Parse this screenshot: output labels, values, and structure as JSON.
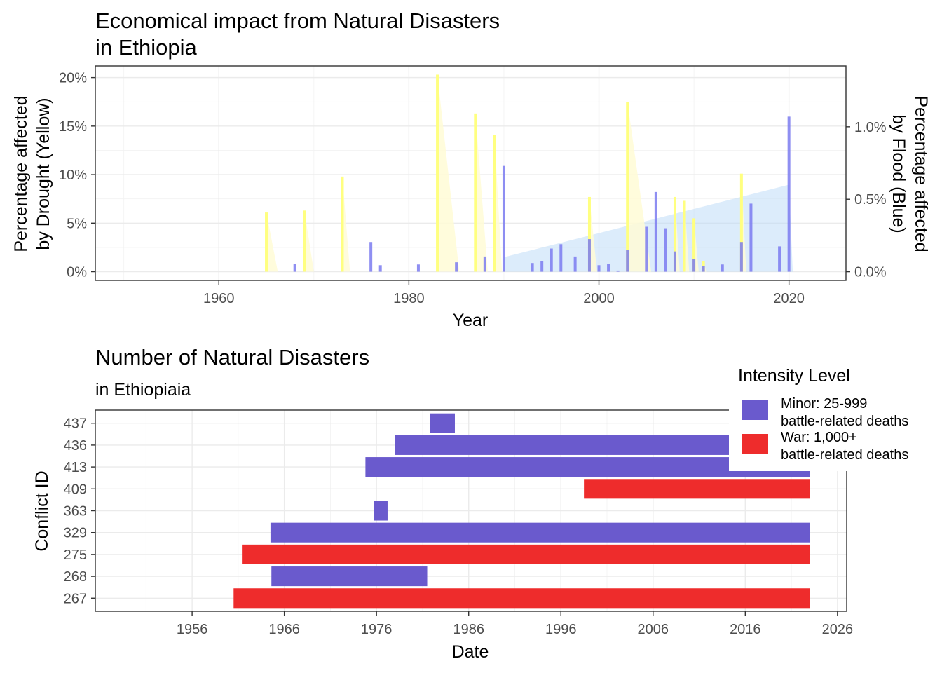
{
  "chart_data": [
    {
      "type": "bar",
      "title_line1": "Economical impact from Natural Disasters",
      "title_line2": "in Ethiopia",
      "xlabel": "Year",
      "ylabel_line1": "Percentage affected",
      "ylabel_line2": "by Drought (Yellow)",
      "y2label_line1": "Percentage affected",
      "y2label_line2": "by Flood (Blue)",
      "xlim": [
        1947,
        2026
      ],
      "ylim": [
        -0.9,
        21.2
      ],
      "y2lim": [
        -0.06,
        1.42
      ],
      "x_ticks": [
        1960,
        1980,
        2000,
        2020
      ],
      "x_tick_labels": [
        "1960",
        "1980",
        "2000",
        "2020"
      ],
      "y_ticks": [
        0,
        5,
        10,
        15,
        20
      ],
      "y_tick_labels": [
        "0%",
        "5%",
        "10%",
        "15%",
        "20%"
      ],
      "y2_ticks": [
        0,
        0.5,
        1.0
      ],
      "y2_tick_labels": [
        "0.0%",
        "0.5%",
        "1.0%"
      ],
      "grid": true,
      "colors": {
        "drought": "#ffff80",
        "drought_fill": "#fffbd6",
        "flood": "#7b7bf0",
        "flood_shade": "#b9d9f7"
      },
      "series": [
        {
          "name": "Drought",
          "axis": "left",
          "x": [
            1965,
            1969,
            1973,
            1983,
            1987,
            1989,
            1999,
            2003,
            2008,
            2009,
            2010,
            2011,
            2015
          ],
          "values": [
            6.1,
            6.3,
            9.8,
            20.3,
            16.3,
            14.1,
            7.7,
            17.5,
            7.7,
            7.3,
            5.5,
            1.1,
            10.1
          ],
          "tail_years": [
            1.2,
            1.0,
            0.8,
            2.3,
            1.3,
            0.8,
            0.8,
            2.5,
            0.5,
            0.5,
            0.5,
            0.3,
            0.5
          ]
        },
        {
          "name": "Flood",
          "axis": "right",
          "x": [
            1968,
            1976,
            1977,
            1981,
            1985,
            1988,
            1990,
            1993,
            1994,
            1995,
            1996,
            1997.5,
            1999,
            2000,
            2001,
            2002,
            2003,
            2005,
            2006,
            2007,
            2008,
            2010,
            2011,
            2013,
            2015,
            2016,
            2019,
            2020
          ],
          "values": [
            0.055,
            0.205,
            0.045,
            0.05,
            0.065,
            0.105,
            0.73,
            0.06,
            0.075,
            0.16,
            0.19,
            0.105,
            0.225,
            0.045,
            0.055,
            0.008,
            0.15,
            0.31,
            0.55,
            0.3,
            0.14,
            0.09,
            0.04,
            0.05,
            0.205,
            0.47,
            0.175,
            1.07
          ],
          "shade_x": [
            1990,
            2020
          ],
          "shade_values": [
            0.1,
            0.6
          ]
        }
      ]
    },
    {
      "type": "bar",
      "orientation": "horizontal",
      "title": "Number of Natural Disasters",
      "subtitle": "in Ethiopiaia",
      "xlabel": "Date",
      "ylabel": "Conflict ID",
      "xlim": [
        1945.5,
        2027
      ],
      "x_ticks": [
        1956,
        1966,
        1976,
        1986,
        1996,
        2006,
        2016,
        2026
      ],
      "x_tick_labels": [
        "1956",
        "1966",
        "1976",
        "1986",
        "1996",
        "2006",
        "2016",
        "2026"
      ],
      "categories": [
        "267",
        "268",
        "275",
        "329",
        "363",
        "409",
        "413",
        "436",
        "437"
      ],
      "grid": true,
      "legend": {
        "title": "Intensity Level",
        "position": "top-right",
        "items": [
          {
            "key": "minor",
            "line1": "Minor: 25-999",
            "line2": "battle-related deaths",
            "color": "#6a5acd"
          },
          {
            "key": "war",
            "line1": "War: 1,000+",
            "line2": "battle-related deaths",
            "color": "#ee2c2c"
          }
        ]
      },
      "bars": [
        {
          "id": "267",
          "start": 1960.5,
          "end": 2023,
          "intensity": "war"
        },
        {
          "id": "268",
          "start": 1964.6,
          "end": 1981.5,
          "intensity": "minor"
        },
        {
          "id": "275",
          "start": 1961.4,
          "end": 2023,
          "intensity": "war"
        },
        {
          "id": "329",
          "start": 1964.5,
          "end": 2023,
          "intensity": "minor"
        },
        {
          "id": "363",
          "start": 1975.7,
          "end": 1977.2,
          "intensity": "minor"
        },
        {
          "id": "409",
          "start": 1998.5,
          "end": 2023,
          "intensity": "war"
        },
        {
          "id": "413",
          "start": 1974.8,
          "end": 2023,
          "intensity": "minor"
        },
        {
          "id": "436",
          "start": 1978,
          "end": 2023,
          "intensity": "minor"
        },
        {
          "id": "437",
          "start": 1981.8,
          "end": 1984.5,
          "intensity": "minor"
        }
      ]
    }
  ]
}
